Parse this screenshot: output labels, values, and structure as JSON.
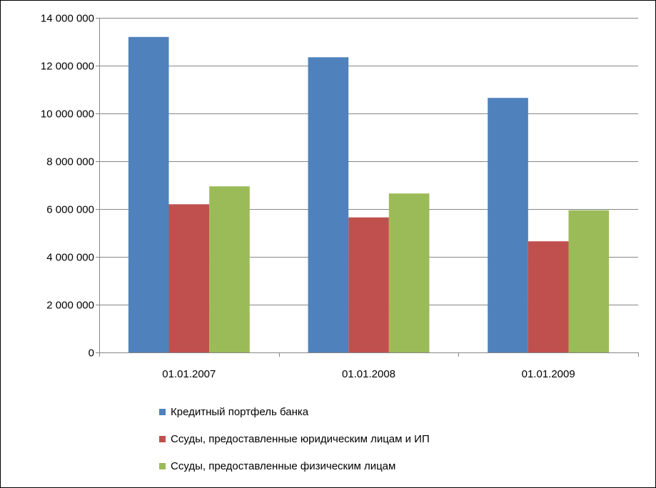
{
  "chart_data": {
    "type": "bar",
    "categories": [
      "01.01.2007",
      "01.01.2008",
      "01.01.2009"
    ],
    "series": [
      {
        "name": "Кредитный портфель банка",
        "color": "#4F81BD",
        "values": [
          13200000,
          12350000,
          10650000
        ]
      },
      {
        "name": "Ссуды, предоставленные юридическим лицам и ИП",
        "color": "#C0504D",
        "values": [
          6200000,
          5650000,
          4650000
        ]
      },
      {
        "name": "Ссуды, предоставленные физическим лицам",
        "color": "#9BBB59",
        "values": [
          6950000,
          6650000,
          5950000
        ]
      }
    ],
    "ylim": [
      0,
      14000000
    ],
    "yticks": [
      0,
      2000000,
      4000000,
      6000000,
      8000000,
      10000000,
      12000000,
      14000000
    ],
    "ytick_labels": [
      "0",
      "2 000 000",
      "4 000 000",
      "6 000 000",
      "8 000 000",
      "10 000 000",
      "12 000 000",
      "14 000 000"
    ],
    "grid": true,
    "legend_position": "bottom"
  }
}
